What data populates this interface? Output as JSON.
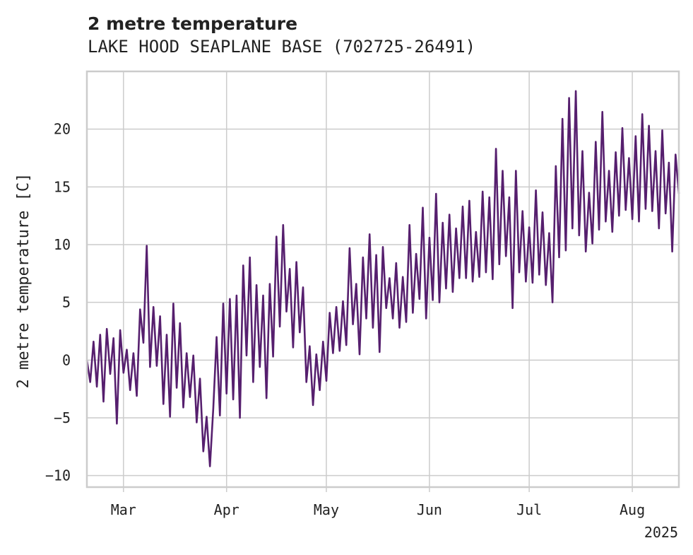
{
  "chart_data": {
    "type": "line",
    "title": "2 metre temperature",
    "subtitle": "LAKE HOOD SEAPLANE BASE (702725-26491)",
    "ylabel": "2 metre temperature [C]",
    "xlabel": "",
    "x_range": [
      "2025-02-18",
      "2025-08-15"
    ],
    "ylim": [
      -11,
      25
    ],
    "y_ticks": [
      -10,
      -5,
      0,
      5,
      10,
      15,
      20
    ],
    "y_tick_labels": [
      "−10",
      "−5",
      "0",
      "5",
      "10",
      "15",
      "20"
    ],
    "x_ticks": [
      {
        "date": "2025-03-01",
        "label": "Mar"
      },
      {
        "date": "2025-04-01",
        "label": "Apr"
      },
      {
        "date": "2025-05-01",
        "label": "May"
      },
      {
        "date": "2025-06-01",
        "label": "Jun"
      },
      {
        "date": "2025-07-01",
        "label": "Jul"
      },
      {
        "date": "2025-08-01",
        "label": "Aug"
      }
    ],
    "x_year_label": "2025",
    "grid": true,
    "series": [
      {
        "color": "#561f6e",
        "points": [
          [
            "2025-02-18",
            0.0
          ],
          [
            "2025-02-19",
            -1.9
          ],
          [
            "2025-02-20",
            1.6
          ],
          [
            "2025-02-21",
            -2.3
          ],
          [
            "2025-02-22",
            2.2
          ],
          [
            "2025-02-23",
            -3.6
          ],
          [
            "2025-02-24",
            2.7
          ],
          [
            "2025-02-25",
            -1.2
          ],
          [
            "2025-02-26",
            1.9
          ],
          [
            "2025-02-27",
            -5.5
          ],
          [
            "2025-02-28",
            2.6
          ],
          [
            "2025-03-01",
            -1.1
          ],
          [
            "2025-03-02",
            0.9
          ],
          [
            "2025-03-03",
            -2.6
          ],
          [
            "2025-03-04",
            0.6
          ],
          [
            "2025-03-05",
            -3.1
          ],
          [
            "2025-03-06",
            4.4
          ],
          [
            "2025-03-07",
            1.5
          ],
          [
            "2025-03-08",
            9.9
          ],
          [
            "2025-03-09",
            -0.6
          ],
          [
            "2025-03-10",
            4.6
          ],
          [
            "2025-03-11",
            -0.5
          ],
          [
            "2025-03-12",
            3.8
          ],
          [
            "2025-03-13",
            -3.8
          ],
          [
            "2025-03-14",
            2.2
          ],
          [
            "2025-03-15",
            -4.9
          ],
          [
            "2025-03-16",
            4.9
          ],
          [
            "2025-03-17",
            -2.4
          ],
          [
            "2025-03-18",
            3.2
          ],
          [
            "2025-03-19",
            -4.1
          ],
          [
            "2025-03-20",
            0.6
          ],
          [
            "2025-03-21",
            -3.2
          ],
          [
            "2025-03-22",
            0.4
          ],
          [
            "2025-03-23",
            -5.4
          ],
          [
            "2025-03-24",
            -1.6
          ],
          [
            "2025-03-25",
            -7.9
          ],
          [
            "2025-03-26",
            -4.9
          ],
          [
            "2025-03-27",
            -9.2
          ],
          [
            "2025-03-28",
            -4.2
          ],
          [
            "2025-03-29",
            2.0
          ],
          [
            "2025-03-30",
            -4.8
          ],
          [
            "2025-03-31",
            4.9
          ],
          [
            "2025-04-01",
            -2.9
          ],
          [
            "2025-04-02",
            5.3
          ],
          [
            "2025-04-03",
            -3.4
          ],
          [
            "2025-04-04",
            5.6
          ],
          [
            "2025-04-05",
            -5.0
          ],
          [
            "2025-04-06",
            8.2
          ],
          [
            "2025-04-07",
            0.4
          ],
          [
            "2025-04-08",
            8.9
          ],
          [
            "2025-04-09",
            -1.9
          ],
          [
            "2025-04-10",
            6.5
          ],
          [
            "2025-04-11",
            -0.6
          ],
          [
            "2025-04-12",
            5.6
          ],
          [
            "2025-04-13",
            -3.3
          ],
          [
            "2025-04-14",
            6.6
          ],
          [
            "2025-04-15",
            0.3
          ],
          [
            "2025-04-16",
            10.7
          ],
          [
            "2025-04-17",
            2.9
          ],
          [
            "2025-04-18",
            11.7
          ],
          [
            "2025-04-19",
            4.2
          ],
          [
            "2025-04-20",
            7.9
          ],
          [
            "2025-04-21",
            1.1
          ],
          [
            "2025-04-22",
            8.5
          ],
          [
            "2025-04-23",
            2.4
          ],
          [
            "2025-04-24",
            6.3
          ],
          [
            "2025-04-25",
            -1.9
          ],
          [
            "2025-04-26",
            1.2
          ],
          [
            "2025-04-27",
            -3.9
          ],
          [
            "2025-04-28",
            0.5
          ],
          [
            "2025-04-29",
            -2.6
          ],
          [
            "2025-04-30",
            1.6
          ],
          [
            "2025-05-01",
            -1.8
          ],
          [
            "2025-05-02",
            4.1
          ],
          [
            "2025-05-03",
            0.6
          ],
          [
            "2025-05-04",
            4.6
          ],
          [
            "2025-05-05",
            0.8
          ],
          [
            "2025-05-06",
            5.1
          ],
          [
            "2025-05-07",
            1.3
          ],
          [
            "2025-05-08",
            9.7
          ],
          [
            "2025-05-09",
            3.1
          ],
          [
            "2025-05-10",
            6.6
          ],
          [
            "2025-05-11",
            0.5
          ],
          [
            "2025-05-12",
            8.9
          ],
          [
            "2025-05-13",
            3.6
          ],
          [
            "2025-05-14",
            10.9
          ],
          [
            "2025-05-15",
            2.8
          ],
          [
            "2025-05-16",
            9.1
          ],
          [
            "2025-05-17",
            0.7
          ],
          [
            "2025-05-18",
            9.8
          ],
          [
            "2025-05-19",
            4.5
          ],
          [
            "2025-05-20",
            7.1
          ],
          [
            "2025-05-21",
            3.6
          ],
          [
            "2025-05-22",
            8.4
          ],
          [
            "2025-05-23",
            2.8
          ],
          [
            "2025-05-24",
            7.2
          ],
          [
            "2025-05-25",
            3.3
          ],
          [
            "2025-05-26",
            11.7
          ],
          [
            "2025-05-27",
            4.1
          ],
          [
            "2025-05-28",
            9.2
          ],
          [
            "2025-05-29",
            5.3
          ],
          [
            "2025-05-30",
            13.2
          ],
          [
            "2025-05-31",
            3.6
          ],
          [
            "2025-06-01",
            10.6
          ],
          [
            "2025-06-02",
            5.2
          ],
          [
            "2025-06-03",
            14.4
          ],
          [
            "2025-06-04",
            5.0
          ],
          [
            "2025-06-05",
            11.9
          ],
          [
            "2025-06-06",
            6.2
          ],
          [
            "2025-06-07",
            12.6
          ],
          [
            "2025-06-08",
            5.9
          ],
          [
            "2025-06-09",
            11.4
          ],
          [
            "2025-06-10",
            7.1
          ],
          [
            "2025-06-11",
            13.3
          ],
          [
            "2025-06-12",
            7.1
          ],
          [
            "2025-06-13",
            13.8
          ],
          [
            "2025-06-14",
            6.8
          ],
          [
            "2025-06-15",
            11.1
          ],
          [
            "2025-06-16",
            7.2
          ],
          [
            "2025-06-17",
            14.6
          ],
          [
            "2025-06-18",
            7.6
          ],
          [
            "2025-06-19",
            14.1
          ],
          [
            "2025-06-20",
            7.0
          ],
          [
            "2025-06-21",
            18.3
          ],
          [
            "2025-06-22",
            8.3
          ],
          [
            "2025-06-23",
            16.4
          ],
          [
            "2025-06-24",
            9.0
          ],
          [
            "2025-06-25",
            14.1
          ],
          [
            "2025-06-26",
            4.5
          ],
          [
            "2025-06-27",
            16.4
          ],
          [
            "2025-06-28",
            7.6
          ],
          [
            "2025-06-29",
            12.9
          ],
          [
            "2025-06-30",
            6.8
          ],
          [
            "2025-07-01",
            11.5
          ],
          [
            "2025-07-02",
            6.7
          ],
          [
            "2025-07-03",
            14.7
          ],
          [
            "2025-07-04",
            7.4
          ],
          [
            "2025-07-05",
            12.8
          ],
          [
            "2025-07-06",
            6.5
          ],
          [
            "2025-07-07",
            11.0
          ],
          [
            "2025-07-08",
            5.0
          ],
          [
            "2025-07-09",
            16.8
          ],
          [
            "2025-07-10",
            8.9
          ],
          [
            "2025-07-11",
            20.9
          ],
          [
            "2025-07-12",
            9.5
          ],
          [
            "2025-07-13",
            22.7
          ],
          [
            "2025-07-14",
            11.4
          ],
          [
            "2025-07-15",
            23.3
          ],
          [
            "2025-07-16",
            10.8
          ],
          [
            "2025-07-17",
            18.1
          ],
          [
            "2025-07-18",
            9.4
          ],
          [
            "2025-07-19",
            14.5
          ],
          [
            "2025-07-20",
            10.1
          ],
          [
            "2025-07-21",
            18.9
          ],
          [
            "2025-07-22",
            11.3
          ],
          [
            "2025-07-23",
            21.5
          ],
          [
            "2025-07-24",
            12.0
          ],
          [
            "2025-07-25",
            16.4
          ],
          [
            "2025-07-26",
            11.1
          ],
          [
            "2025-07-27",
            18.0
          ],
          [
            "2025-07-28",
            12.5
          ],
          [
            "2025-07-29",
            20.1
          ],
          [
            "2025-07-30",
            13.0
          ],
          [
            "2025-07-31",
            17.5
          ],
          [
            "2025-08-01",
            12.2
          ],
          [
            "2025-08-02",
            19.4
          ],
          [
            "2025-08-03",
            12.0
          ],
          [
            "2025-08-04",
            21.3
          ],
          [
            "2025-08-05",
            13.1
          ],
          [
            "2025-08-06",
            20.3
          ],
          [
            "2025-08-07",
            12.9
          ],
          [
            "2025-08-08",
            18.1
          ],
          [
            "2025-08-09",
            11.4
          ],
          [
            "2025-08-10",
            19.9
          ],
          [
            "2025-08-11",
            12.7
          ],
          [
            "2025-08-12",
            17.1
          ],
          [
            "2025-08-13",
            9.4
          ],
          [
            "2025-08-14",
            17.8
          ],
          [
            "2025-08-15",
            14.4
          ]
        ]
      }
    ]
  }
}
